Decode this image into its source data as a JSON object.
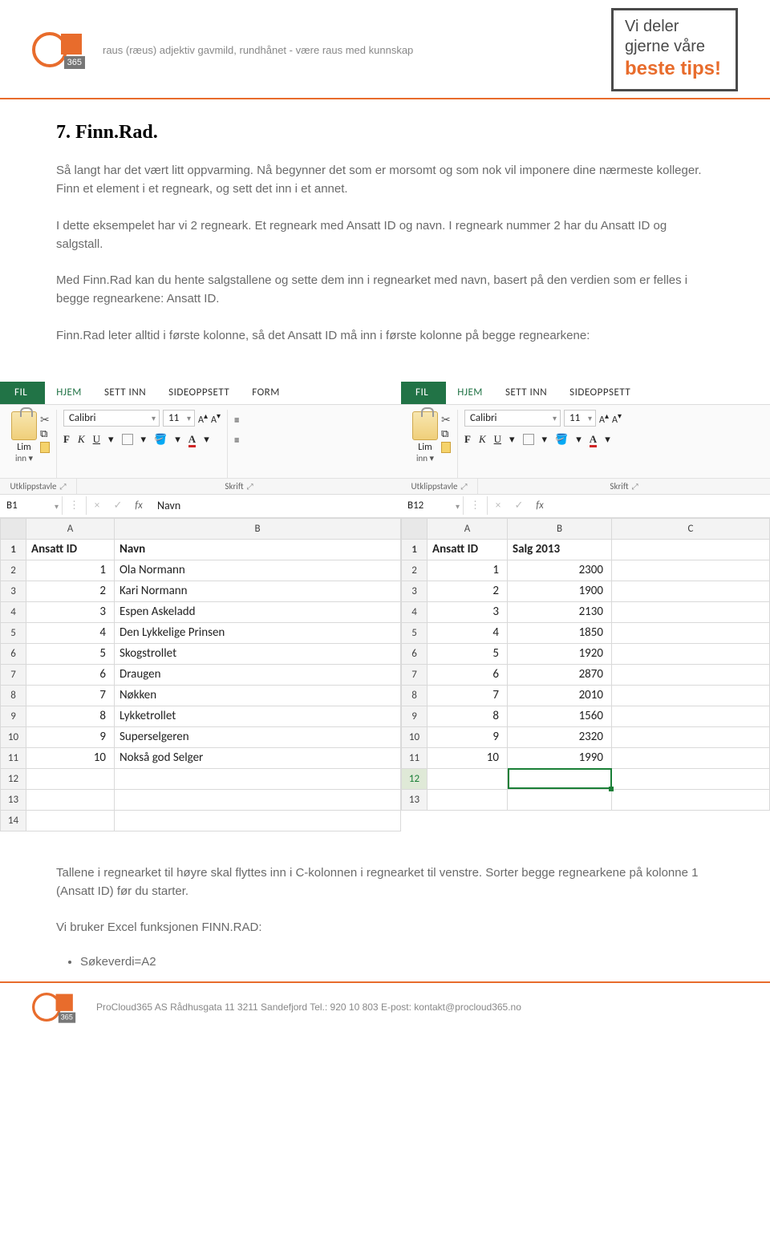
{
  "header": {
    "tagline": "raus (ræus) adjektiv gavmild, rundhånet - være raus med kunnskap",
    "tips": {
      "l1": "Vi deler",
      "l2": "gjerne våre",
      "l3": "beste tips!"
    },
    "logo365": "365"
  },
  "body": {
    "heading": "7. Finn.Rad.",
    "p1": "Så langt har det vært litt oppvarming. Nå begynner det som er morsomt og som nok vil imponere dine nærmeste kolleger. Finn et element i et regneark, og sett det inn i et annet.",
    "p2": "I dette eksempelet har vi 2 regneark. Et regneark med Ansatt ID og navn. I regneark nummer 2 har du Ansatt ID og salgstall.",
    "p3": "Med Finn.Rad kan du hente salgstallene og sette dem inn i regnearket med navn, basert på den verdien som er felles i begge regnearkene: Ansatt ID.",
    "p4": "Finn.Rad leter alltid i første kolonne, så det Ansatt ID må inn i første kolonne på begge regnearkene:",
    "p5": "Tallene i regnearket til høyre skal flyttes inn i C-kolonnen i regnearket til venstre. Sorter begge regnearkene på kolonne 1 (Ansatt ID) før du starter.",
    "p6": "Vi bruker Excel funksjonen FINN.RAD:",
    "bullet1": "Søkeverdi=A2"
  },
  "excel_common": {
    "tab_file": "FIL",
    "tab_home": "HJEM",
    "tab_insert": "SETT INN",
    "tab_layout": "SIDEOPPSETT",
    "tab_form_partial": "FORM",
    "font_name": "Calibri",
    "font_size": "11",
    "lim": "Lim",
    "inn": "inn",
    "group_clip": "Utklippstavle",
    "group_font": "Skrift",
    "fx": "fx",
    "A_big": "A",
    "A_small": "A"
  },
  "excel_left": {
    "name_box": "B1",
    "fx_value": "Navn",
    "col_A": "A",
    "col_B": "B",
    "h1": "Ansatt ID",
    "h2": "Navn",
    "rows": [
      {
        "n": 1,
        "name": "Ola Normann"
      },
      {
        "n": 2,
        "name": "Kari Normann"
      },
      {
        "n": 3,
        "name": "Espen Askeladd"
      },
      {
        "n": 4,
        "name": "Den Lykkelige Prinsen"
      },
      {
        "n": 5,
        "name": "Skogstrollet"
      },
      {
        "n": 6,
        "name": "Draugen"
      },
      {
        "n": 7,
        "name": "Nøkken"
      },
      {
        "n": 8,
        "name": "Lykketrollet"
      },
      {
        "n": 9,
        "name": "Superselgeren"
      },
      {
        "n": 10,
        "name": "Nokså god Selger"
      }
    ],
    "row_labels": [
      "1",
      "2",
      "3",
      "4",
      "5",
      "6",
      "7",
      "8",
      "9",
      "10",
      "11",
      "12",
      "13",
      "14"
    ]
  },
  "excel_right": {
    "name_box": "B12",
    "col_A": "A",
    "col_B": "B",
    "col_C": "C",
    "h1": "Ansatt ID",
    "h2": "Salg 2013",
    "rows": [
      {
        "n": 1,
        "v": 2300
      },
      {
        "n": 2,
        "v": 1900
      },
      {
        "n": 3,
        "v": 2130
      },
      {
        "n": 4,
        "v": 1850
      },
      {
        "n": 5,
        "v": 1920
      },
      {
        "n": 6,
        "v": 2870
      },
      {
        "n": 7,
        "v": 2010
      },
      {
        "n": 8,
        "v": 1560
      },
      {
        "n": 9,
        "v": 2320
      },
      {
        "n": 10,
        "v": 1990
      }
    ],
    "row_labels": [
      "1",
      "2",
      "3",
      "4",
      "5",
      "6",
      "7",
      "8",
      "9",
      "10",
      "11",
      "12",
      "13"
    ]
  },
  "footer": {
    "text": "ProCloud365 AS   Rådhusgata 11   3211 Sandefjord   Tel.: 920 10 803   E-post: kontakt@procloud365.no"
  },
  "colors": {
    "accent": "#e86c2c",
    "excel_green": "#217346",
    "select_green": "#1a7f37",
    "body_text": "#6a6a6a"
  }
}
